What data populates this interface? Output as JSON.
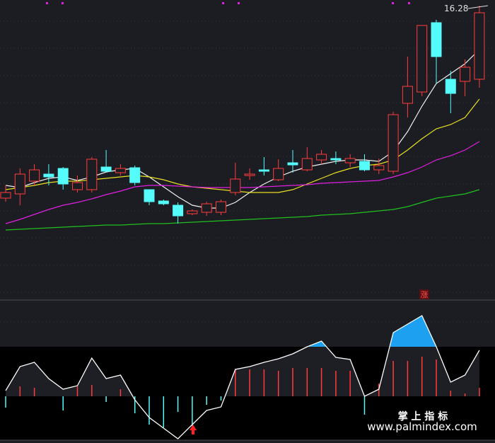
{
  "chart_data": [
    {
      "type": "candlestick",
      "ylim": [
        8.04,
        16.44
      ],
      "up_color": "#ff3c3c",
      "down_color": "#54fcfc",
      "open": [
        10.84,
        10.96,
        11.32,
        11.52,
        11.68,
        11.08,
        11.08,
        11.72,
        11.56,
        11.7,
        11.08,
        10.76,
        10.64,
        10.4,
        10.44,
        10.44,
        11.0,
        11.48,
        11.64,
        11.36,
        11.84,
        11.64,
        11.92,
        11.96,
        11.84,
        11.88,
        11.64,
        11.6,
        13.52,
        13.84,
        15.8,
        14.2,
        14.14,
        14.2
      ],
      "close": [
        11.0,
        11.52,
        11.64,
        11.44,
        11.24,
        11.28,
        11.94,
        11.6,
        11.68,
        11.28,
        10.74,
        10.68,
        10.34,
        10.48,
        10.68,
        10.74,
        11.38,
        11.52,
        11.6,
        11.68,
        11.78,
        11.96,
        12.08,
        11.92,
        11.96,
        11.64,
        11.76,
        13.2,
        14.0,
        15.72,
        14.84,
        13.8,
        14.54,
        16.08
      ],
      "high": [
        11.2,
        11.68,
        11.8,
        11.8,
        11.72,
        11.48,
        12.0,
        12.2,
        11.8,
        11.76,
        11.08,
        10.8,
        10.72,
        10.52,
        10.74,
        10.8,
        11.84,
        11.68,
        12.0,
        11.94,
        12.2,
        12.28,
        12.2,
        12.16,
        12.08,
        12.08,
        11.96,
        13.28,
        14.84,
        15.72,
        15.88,
        14.44,
        14.76,
        16.28
      ],
      "low": [
        10.74,
        10.64,
        11.2,
        11.2,
        11.08,
        11.0,
        11.0,
        11.56,
        11.48,
        11.2,
        10.64,
        10.64,
        10.12,
        10.36,
        10.34,
        10.36,
        10.92,
        11.36,
        11.48,
        11.32,
        11.56,
        11.6,
        11.8,
        11.8,
        11.72,
        11.6,
        11.52,
        11.52,
        13.12,
        13.72,
        14.08,
        13.24,
        13.72,
        13.96
      ],
      "series": [
        {
          "color": "#f0f0f0",
          "values": [
            11.2,
            11.14,
            11.28,
            11.4,
            11.44,
            11.34,
            11.44,
            11.58,
            11.64,
            11.68,
            11.44,
            11.16,
            10.88,
            10.64,
            10.56,
            10.56,
            10.72,
            11.0,
            11.24,
            11.44,
            11.6,
            11.72,
            11.8,
            11.88,
            11.92,
            11.92,
            11.88,
            12.16,
            12.72,
            13.44,
            14.08,
            14.36,
            14.64,
            15.04
          ]
        },
        {
          "color": "#e8e020",
          "values": [
            11.08,
            11.14,
            11.2,
            11.28,
            11.32,
            11.32,
            11.36,
            11.4,
            11.44,
            11.48,
            11.44,
            11.36,
            11.24,
            11.16,
            11.12,
            11.08,
            11.04,
            11.0,
            11.0,
            11.0,
            11.08,
            11.24,
            11.4,
            11.56,
            11.68,
            11.76,
            11.8,
            11.92,
            12.2,
            12.52,
            12.8,
            12.92,
            13.12,
            13.64
          ]
        },
        {
          "color": "#e020e0",
          "values": [
            10.12,
            10.24,
            10.38,
            10.52,
            10.64,
            10.72,
            10.82,
            10.94,
            11.04,
            11.16,
            11.2,
            11.2,
            11.18,
            11.16,
            11.14,
            11.14,
            11.14,
            11.14,
            11.16,
            11.18,
            11.2,
            11.22,
            11.26,
            11.28,
            11.3,
            11.32,
            11.34,
            11.44,
            11.56,
            11.72,
            11.92,
            12.04,
            12.2,
            12.44
          ]
        },
        {
          "color": "#20c020",
          "values": [
            9.94,
            9.96,
            9.98,
            10.0,
            10.02,
            10.04,
            10.06,
            10.08,
            10.08,
            10.1,
            10.12,
            10.12,
            10.14,
            10.16,
            10.18,
            10.2,
            10.22,
            10.24,
            10.26,
            10.28,
            10.3,
            10.32,
            10.36,
            10.38,
            10.4,
            10.44,
            10.48,
            10.52,
            10.6,
            10.72,
            10.84,
            10.9,
            10.96,
            11.08
          ]
        }
      ],
      "badge": "涨"
    },
    {
      "type": "indicator",
      "ylim": [
        -6,
        13.5
      ],
      "line_color": "#ffffff",
      "fill_color": "#1ea0f0",
      "up_color": "#ff3c3c",
      "down_color": "#54fcfc",
      "line": [
        0.8,
        4.2,
        4.8,
        2.5,
        1.0,
        1.5,
        5.4,
        2.5,
        3.0,
        -0.5,
        -3.0,
        -4.5,
        -6.0,
        -4.0,
        -2.0,
        -1.5,
        3.8,
        4.2,
        4.8,
        5.3,
        6.0,
        7.0,
        7.8,
        5.5,
        5.2,
        0,
        1.0,
        9.0,
        10.2,
        11.4,
        7.0,
        2.0,
        3.0,
        6.5
      ],
      "bars": [
        -1.6,
        1.4,
        1.2,
        0,
        -2.0,
        1.4,
        1.6,
        -0.8,
        1.0,
        -2.4,
        -4.0,
        -4.4,
        -2.2,
        -4.2,
        -1.2,
        -0.6,
        3.8,
        3.8,
        3.8,
        3.6,
        4.0,
        4.0,
        4.0,
        3.6,
        3.6,
        -2.6,
        1.8,
        5.0,
        5.0,
        5.6,
        5.2,
        0.8,
        0.4,
        1.2
      ]
    }
  ],
  "watermark": {
    "title": "掌 上 指 标",
    "url": "www.palmindex.com"
  }
}
